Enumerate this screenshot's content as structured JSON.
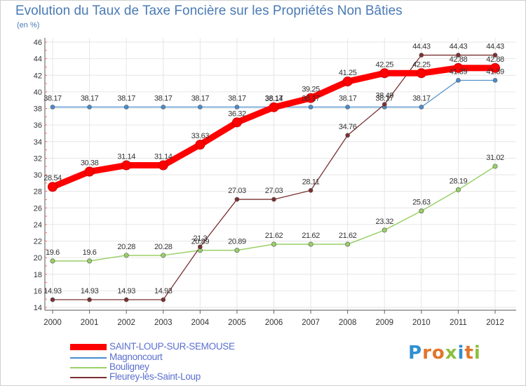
{
  "header": {
    "title": "Evolution du Taux de Taxe Foncière sur les Propriétés Non Bâties",
    "unit": "(en %)"
  },
  "brand": {
    "text": "Proxiti",
    "letters": [
      "P",
      "r",
      "o",
      "x",
      "i",
      "t",
      "i"
    ],
    "colors": [
      "#2f8fd0",
      "#e0762b",
      "#e0762b",
      "#8cbf3f",
      "#2f8fd0",
      "#e0762b",
      "#8cbf3f"
    ]
  },
  "chart_data": {
    "type": "line",
    "x": [
      "2000",
      "2001",
      "2002",
      "2003",
      "2004",
      "2005",
      "2006",
      "2007",
      "2008",
      "2009",
      "2010",
      "2011",
      "2012"
    ],
    "ylim": [
      14,
      46
    ],
    "yticks": [
      "14",
      "16",
      "18",
      "20",
      "22",
      "24",
      "26",
      "28",
      "30",
      "32",
      "34",
      "36",
      "38",
      "40",
      "42",
      "44",
      "46"
    ],
    "grid": true,
    "legend_position": "bottom-left",
    "series": [
      {
        "name": "SAINT-LOUP-SUR-SEMOUSE",
        "color": "#ff0000",
        "values": [
          28.54,
          30.38,
          31.14,
          31.14,
          33.63,
          36.32,
          38.14,
          39.25,
          41.25,
          42.25,
          42.25,
          42.88,
          42.88
        ],
        "labels": [
          "28.54",
          "30.38",
          "31.14",
          "31.14",
          "33.63",
          "36.32",
          "38.14",
          "39.25",
          "41.25",
          "42.25",
          "42.25",
          "42.88",
          "42.88"
        ]
      },
      {
        "name": "Magnoncourt",
        "color": "#4a8ccc",
        "values": [
          38.17,
          38.17,
          38.17,
          38.17,
          38.17,
          38.17,
          38.17,
          38.17,
          38.17,
          38.17,
          38.17,
          41.39,
          41.39
        ],
        "labels": [
          "38.17",
          "38.17",
          "38.17",
          "38.17",
          "38.17",
          "38.17",
          "38.17",
          "38.17",
          "38.17",
          "38.17",
          "38.17",
          "41.39",
          "41.39"
        ]
      },
      {
        "name": "Bouligney",
        "color": "#99d066",
        "values": [
          19.6,
          19.6,
          20.28,
          20.28,
          20.89,
          20.89,
          21.62,
          21.62,
          21.62,
          23.32,
          25.63,
          28.19,
          31.02
        ],
        "labels": [
          "19.6",
          "19.6",
          "20.28",
          "20.28",
          "20.89",
          "20.89",
          "21.62",
          "21.62",
          "21.62",
          "23.32",
          "25.63",
          "28.19",
          "31.02"
        ]
      },
      {
        "name": "Fleurey-lès-Saint-Loup",
        "color": "#7a3030",
        "values": [
          14.93,
          14.93,
          14.93,
          14.93,
          21.3,
          27.03,
          27.03,
          28.11,
          34.76,
          38.49,
          44.43,
          44.43,
          44.43
        ],
        "labels": [
          "14.93",
          "14.93",
          "14.93",
          "14.93",
          "21.3",
          "27.03",
          "27.03",
          "28.11",
          "34.76",
          "38.49",
          "44.43",
          "44.43",
          "44.43"
        ]
      }
    ]
  }
}
